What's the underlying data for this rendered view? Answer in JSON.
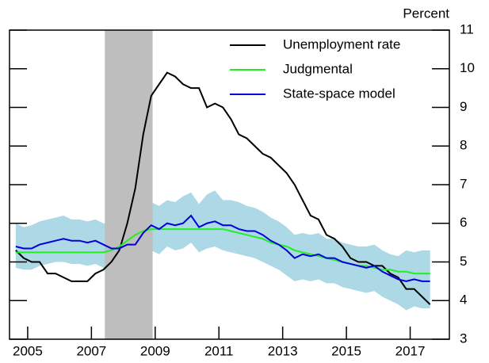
{
  "chart_data": {
    "type": "line",
    "y_axis_label": "Percent",
    "x": [
      2005.125,
      2005.375,
      2005.625,
      2005.875,
      2006.125,
      2006.375,
      2006.625,
      2006.875,
      2007.125,
      2007.375,
      2007.625,
      2007.875,
      2008.125,
      2008.375,
      2008.625,
      2008.875,
      2009.125,
      2009.375,
      2009.625,
      2009.875,
      2010.125,
      2010.375,
      2010.625,
      2010.875,
      2011.125,
      2011.375,
      2011.625,
      2011.875,
      2012.125,
      2012.375,
      2012.625,
      2012.875,
      2013.125,
      2013.375,
      2013.625,
      2013.875,
      2014.125,
      2014.375,
      2014.625,
      2014.875,
      2015.125,
      2015.375,
      2015.625,
      2015.875,
      2016.125,
      2016.375,
      2016.625,
      2016.875,
      2017.125,
      2017.375,
      2017.625,
      2017.875,
      2018.125
    ],
    "series": [
      {
        "name": "Unemployment rate",
        "color": "#000000",
        "values": [
          5.3,
          5.1,
          5.0,
          5.0,
          4.7,
          4.7,
          4.6,
          4.5,
          4.5,
          4.5,
          4.7,
          4.8,
          5.0,
          5.3,
          6.0,
          6.9,
          8.3,
          9.3,
          9.6,
          9.9,
          9.8,
          9.6,
          9.5,
          9.5,
          9.0,
          9.1,
          9.0,
          8.7,
          8.3,
          8.2,
          8.0,
          7.8,
          7.7,
          7.5,
          7.3,
          7.0,
          6.6,
          6.2,
          6.1,
          5.7,
          5.6,
          5.4,
          5.1,
          5.0,
          5.0,
          4.9,
          4.9,
          4.7,
          4.6,
          4.3,
          4.3,
          4.1,
          3.9
        ]
      },
      {
        "name": "Judgmental",
        "color": "#22ee22",
        "values": [
          5.25,
          5.25,
          5.25,
          5.25,
          5.25,
          5.25,
          5.25,
          5.25,
          5.25,
          5.25,
          5.25,
          5.25,
          5.3,
          5.4,
          5.55,
          5.7,
          5.8,
          5.85,
          5.85,
          5.85,
          5.85,
          5.85,
          5.85,
          5.85,
          5.85,
          5.85,
          5.85,
          5.8,
          5.75,
          5.7,
          5.65,
          5.6,
          5.5,
          5.45,
          5.4,
          5.3,
          5.25,
          5.2,
          5.15,
          5.1,
          5.05,
          5.0,
          4.95,
          4.9,
          4.9,
          4.85,
          4.8,
          4.8,
          4.75,
          4.75,
          4.7,
          4.7,
          4.7
        ]
      },
      {
        "name": "State-space model",
        "color": "#0000dd",
        "values": [
          5.4,
          5.35,
          5.35,
          5.45,
          5.5,
          5.55,
          5.6,
          5.55,
          5.55,
          5.5,
          5.55,
          5.45,
          5.35,
          5.35,
          5.45,
          5.45,
          5.75,
          5.95,
          5.85,
          6.0,
          5.95,
          6.0,
          6.2,
          5.9,
          6.0,
          6.05,
          5.95,
          5.95,
          5.85,
          5.8,
          5.8,
          5.7,
          5.55,
          5.45,
          5.3,
          5.1,
          5.2,
          5.15,
          5.2,
          5.1,
          5.1,
          5.0,
          4.95,
          4.9,
          4.85,
          4.9,
          4.75,
          4.65,
          4.55,
          4.5,
          4.55,
          4.5,
          4.5
        ]
      }
    ],
    "band": {
      "color": "#add8e6",
      "upper": [
        6.0,
        5.9,
        5.95,
        6.05,
        6.1,
        6.15,
        6.2,
        6.1,
        6.1,
        6.05,
        6.1,
        6.0,
        5.95,
        6.0,
        6.2,
        6.4,
        6.5,
        6.55,
        6.45,
        6.6,
        6.55,
        6.7,
        6.8,
        6.5,
        6.75,
        6.85,
        6.6,
        6.6,
        6.55,
        6.45,
        6.4,
        6.3,
        6.15,
        6.05,
        5.9,
        5.7,
        5.75,
        5.7,
        5.75,
        5.6,
        5.6,
        5.5,
        5.45,
        5.4,
        5.4,
        5.45,
        5.3,
        5.2,
        5.15,
        5.3,
        5.25,
        5.3,
        5.3
      ],
      "lower": [
        4.85,
        4.8,
        4.8,
        4.9,
        4.95,
        5.0,
        5.0,
        4.95,
        4.95,
        4.9,
        4.95,
        4.85,
        4.8,
        4.75,
        4.85,
        4.9,
        5.1,
        5.3,
        5.2,
        5.4,
        5.3,
        5.35,
        5.5,
        5.25,
        5.35,
        5.4,
        5.3,
        5.25,
        5.2,
        5.15,
        5.1,
        5.0,
        4.9,
        4.8,
        4.65,
        4.5,
        4.55,
        4.5,
        4.55,
        4.45,
        4.45,
        4.35,
        4.3,
        4.25,
        4.2,
        4.25,
        4.1,
        4.0,
        3.9,
        3.75,
        3.85,
        3.8,
        3.8
      ]
    },
    "shaded_region": {
      "x": [
        2007.92,
        2009.42
      ],
      "color": "#bebebe"
    },
    "xlim": [
      2004.93,
      2018.73
    ],
    "xticks": [
      {
        "value": 2005.5,
        "label": "2005"
      },
      {
        "value": 2007.5,
        "label": "2007"
      },
      {
        "value": 2009.5,
        "label": "2009"
      },
      {
        "value": 2011.5,
        "label": "2011"
      },
      {
        "value": 2013.5,
        "label": "2013"
      },
      {
        "value": 2015.5,
        "label": "2015"
      },
      {
        "value": 2017.5,
        "label": "2017"
      }
    ],
    "ylim": [
      3,
      11
    ],
    "yticks": [
      3,
      4,
      5,
      6,
      7,
      8,
      9,
      10,
      11
    ],
    "legend": "top-right"
  }
}
